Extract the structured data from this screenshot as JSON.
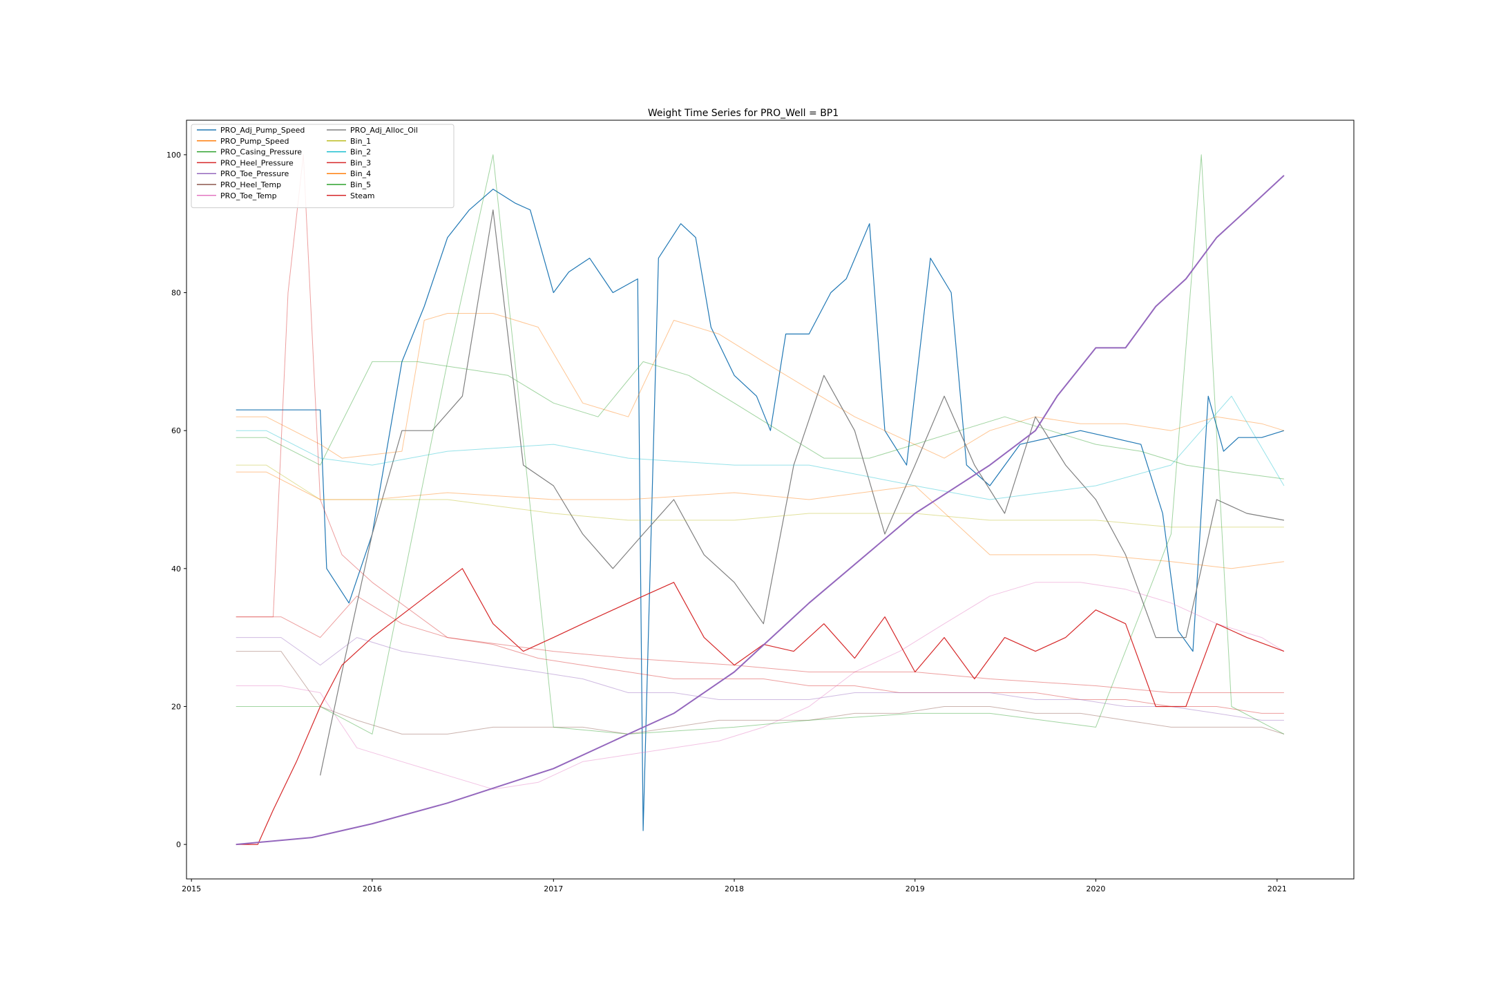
{
  "chart_data": {
    "type": "line",
    "title": "Weight Time Series for PRO_Well = BP1",
    "xlabel": "",
    "ylabel": "",
    "xlim": [
      "2014-12-22",
      "2021-06-05"
    ],
    "ylim": [
      -5,
      105
    ],
    "x_ticks": [
      "2015",
      "2016",
      "2017",
      "2018",
      "2019",
      "2020",
      "2021"
    ],
    "y_ticks": [
      0,
      20,
      40,
      60,
      80,
      100
    ],
    "grid": false,
    "legend_position": "upper left",
    "legend_columns": 2,
    "series": [
      {
        "name": "PRO_Adj_Pump_Speed",
        "color": "#1f77b4",
        "x": [
          "2015-04-01",
          "2015-09-18",
          "2015-10-01",
          "2015-11-15",
          "2016-01-01",
          "2016-03-01",
          "2016-04-15",
          "2016-06-01",
          "2016-07-15",
          "2016-09-01",
          "2016-10-15",
          "2016-11-15",
          "2017-01-01",
          "2017-02-01",
          "2017-03-15",
          "2017-05-01",
          "2017-06-20",
          "2017-07-01",
          "2017-08-01",
          "2017-09-15",
          "2017-10-15",
          "2017-11-15",
          "2018-01-01",
          "2018-02-15",
          "2018-03-15",
          "2018-04-15",
          "2018-06-01",
          "2018-07-15",
          "2018-08-15",
          "2018-10-01",
          "2018-11-01",
          "2018-12-15",
          "2019-02-01",
          "2019-03-15",
          "2019-04-15",
          "2019-06-01",
          "2019-08-01",
          "2019-10-01",
          "2019-12-01",
          "2020-02-01",
          "2020-04-01",
          "2020-05-15",
          "2020-06-15",
          "2020-07-15",
          "2020-08-15",
          "2020-09-15",
          "2020-10-15",
          "2020-12-01",
          "2021-01-15"
        ],
        "y": [
          63,
          63,
          40,
          35,
          45,
          70,
          78,
          88,
          92,
          95,
          93,
          92,
          80,
          83,
          85,
          80,
          82,
          2,
          85,
          90,
          88,
          75,
          68,
          65,
          60,
          74,
          74,
          80,
          82,
          90,
          60,
          55,
          85,
          80,
          55,
          52,
          58,
          59,
          60,
          59,
          58,
          48,
          31,
          28,
          65,
          57,
          59,
          59,
          60
        ]
      },
      {
        "name": "PRO_Pump_Speed",
        "color": "#ff7f0e",
        "x": [
          "2015-04-01",
          "2015-06-01",
          "2015-09-18",
          "2015-11-01",
          "2016-03-01",
          "2016-04-15",
          "2016-06-01",
          "2016-09-01",
          "2016-12-01",
          "2017-03-01",
          "2017-06-01",
          "2017-09-01",
          "2017-12-01",
          "2018-03-01",
          "2018-06-01",
          "2018-09-01",
          "2018-12-01",
          "2019-03-01",
          "2019-06-01",
          "2019-09-01",
          "2019-12-01",
          "2020-03-01",
          "2020-06-01",
          "2020-09-01",
          "2020-12-01",
          "2021-01-15"
        ],
        "y": [
          62,
          62,
          58,
          56,
          57,
          76,
          77,
          77,
          75,
          64,
          62,
          76,
          74,
          70,
          66,
          62,
          59,
          56,
          60,
          62,
          61,
          61,
          60,
          62,
          61,
          60
        ]
      },
      {
        "name": "PRO_Casing_Pressure",
        "color": "#2ca02c",
        "x": [
          "2015-04-01",
          "2015-06-01",
          "2015-09-18",
          "2016-01-01",
          "2016-04-01",
          "2016-07-01",
          "2016-10-01",
          "2017-01-01",
          "2017-04-01",
          "2017-07-01",
          "2017-10-01",
          "2018-01-01",
          "2018-04-01",
          "2018-07-01",
          "2018-10-01",
          "2019-01-01",
          "2019-04-01",
          "2019-07-01",
          "2019-10-01",
          "2020-01-01",
          "2020-04-01",
          "2020-07-01",
          "2020-10-01",
          "2021-01-15"
        ],
        "y": [
          59,
          59,
          55,
          70,
          70,
          69,
          68,
          64,
          62,
          70,
          68,
          64,
          60,
          56,
          56,
          58,
          60,
          62,
          60,
          58,
          57,
          55,
          54,
          53
        ]
      },
      {
        "name": "PRO_Heel_Pressure",
        "color": "#d62728",
        "x": [
          "2015-04-01",
          "2015-07-01",
          "2015-09-18",
          "2015-12-01",
          "2016-03-01",
          "2016-06-01",
          "2016-09-01",
          "2016-12-01",
          "2017-03-01",
          "2017-06-01",
          "2017-09-01",
          "2017-12-01",
          "2018-03-01",
          "2018-06-01",
          "2018-09-01",
          "2018-12-01",
          "2019-03-01",
          "2019-06-01",
          "2019-09-01",
          "2019-12-01",
          "2020-03-01",
          "2020-06-01",
          "2020-09-01",
          "2020-12-01",
          "2021-01-15"
        ],
        "y": [
          33,
          33,
          30,
          36,
          32,
          30,
          29,
          27,
          26,
          25,
          24,
          24,
          24,
          23,
          23,
          22,
          22,
          22,
          22,
          21,
          21,
          20,
          20,
          19,
          19
        ]
      },
      {
        "name": "PRO_Toe_Pressure",
        "color": "#9467bd",
        "x": [
          "2015-04-01",
          "2015-07-01",
          "2015-09-18",
          "2015-12-01",
          "2016-03-01",
          "2016-06-01",
          "2016-09-01",
          "2016-12-01",
          "2017-03-01",
          "2017-06-01",
          "2017-09-01",
          "2017-12-01",
          "2018-03-01",
          "2018-06-01",
          "2018-09-01",
          "2018-12-01",
          "2019-03-01",
          "2019-06-01",
          "2019-09-01",
          "2019-12-01",
          "2020-03-01",
          "2020-06-01",
          "2020-09-01",
          "2020-12-01",
          "2021-01-15"
        ],
        "y": [
          30,
          30,
          26,
          30,
          28,
          27,
          26,
          25,
          24,
          22,
          22,
          21,
          21,
          21,
          22,
          22,
          22,
          22,
          21,
          21,
          20,
          20,
          19,
          18,
          18
        ]
      },
      {
        "name": "PRO_Heel_Temp",
        "color": "#8c564b",
        "x": [
          "2015-04-01",
          "2015-07-01",
          "2015-09-18",
          "2015-12-01",
          "2016-03-01",
          "2016-06-01",
          "2016-09-01",
          "2016-12-01",
          "2017-03-01",
          "2017-06-01",
          "2017-09-01",
          "2017-12-01",
          "2018-03-01",
          "2018-06-01",
          "2018-09-01",
          "2018-12-01",
          "2019-03-01",
          "2019-06-01",
          "2019-09-01",
          "2019-12-01",
          "2020-03-01",
          "2020-06-01",
          "2020-09-01",
          "2020-12-01",
          "2021-01-15"
        ],
        "y": [
          28,
          28,
          20,
          18,
          16,
          16,
          17,
          17,
          17,
          16,
          17,
          18,
          18,
          18,
          19,
          19,
          20,
          20,
          19,
          19,
          18,
          17,
          17,
          17,
          16
        ]
      },
      {
        "name": "PRO_Toe_Temp",
        "color": "#e377c2",
        "x": [
          "2015-04-01",
          "2015-07-01",
          "2015-09-18",
          "2015-12-01",
          "2016-03-01",
          "2016-06-01",
          "2016-09-01",
          "2016-12-01",
          "2017-03-01",
          "2017-06-01",
          "2017-09-01",
          "2017-12-01",
          "2018-03-01",
          "2018-06-01",
          "2018-09-01",
          "2018-12-01",
          "2019-03-01",
          "2019-06-01",
          "2019-09-01",
          "2019-12-01",
          "2020-03-01",
          "2020-06-01",
          "2020-09-01",
          "2020-12-01",
          "2021-01-15"
        ],
        "y": [
          23,
          23,
          22,
          14,
          12,
          10,
          8,
          9,
          12,
          13,
          14,
          15,
          17,
          20,
          25,
          28,
          32,
          36,
          38,
          38,
          37,
          35,
          32,
          30,
          28
        ]
      },
      {
        "name": "PRO_Adj_Alloc_Oil",
        "color": "#7f7f7f",
        "x": [
          "2015-09-18",
          "2015-11-01",
          "2016-01-01",
          "2016-03-01",
          "2016-05-01",
          "2016-07-01",
          "2016-09-01",
          "2016-11-01",
          "2017-01-01",
          "2017-03-01",
          "2017-05-01",
          "2017-07-01",
          "2017-09-01",
          "2017-11-01",
          "2018-01-01",
          "2018-03-01",
          "2018-05-01",
          "2018-07-01",
          "2018-09-01",
          "2018-11-01",
          "2019-01-01",
          "2019-03-01",
          "2019-05-01",
          "2019-07-01",
          "2019-09-01",
          "2019-11-01",
          "2020-01-01",
          "2020-03-01",
          "2020-05-01",
          "2020-07-01",
          "2020-09-01",
          "2020-11-01",
          "2021-01-15"
        ],
        "y": [
          10,
          25,
          45,
          60,
          60,
          65,
          92,
          55,
          52,
          45,
          40,
          45,
          50,
          42,
          38,
          32,
          55,
          68,
          60,
          45,
          55,
          65,
          55,
          48,
          62,
          55,
          50,
          42,
          30,
          30,
          50,
          48,
          47
        ]
      },
      {
        "name": "Bin_1",
        "color": "#bcbd22",
        "x": [
          "2015-04-01",
          "2015-06-01",
          "2015-09-18",
          "2016-01-01",
          "2016-06-01",
          "2017-01-01",
          "2017-06-01",
          "2018-01-01",
          "2018-06-01",
          "2019-01-01",
          "2019-06-01",
          "2020-01-01",
          "2020-06-01",
          "2021-01-15"
        ],
        "y": [
          55,
          55,
          50,
          50,
          50,
          48,
          47,
          47,
          48,
          48,
          47,
          47,
          46,
          46
        ]
      },
      {
        "name": "Bin_2",
        "color": "#17becf",
        "x": [
          "2015-04-01",
          "2015-06-01",
          "2015-09-18",
          "2016-01-01",
          "2016-06-01",
          "2017-01-01",
          "2017-06-01",
          "2018-01-01",
          "2018-06-01",
          "2019-01-01",
          "2019-06-01",
          "2020-01-01",
          "2020-06-01",
          "2020-10-01",
          "2021-01-15"
        ],
        "y": [
          60,
          60,
          56,
          55,
          57,
          58,
          56,
          55,
          55,
          52,
          50,
          52,
          55,
          65,
          52
        ]
      },
      {
        "name": "Bin_3",
        "color": "#d62728",
        "x": [
          "2015-04-01",
          "2015-06-15",
          "2015-07-15",
          "2015-08-15",
          "2015-09-18",
          "2015-11-01",
          "2016-01-01",
          "2016-06-01",
          "2017-01-01",
          "2017-06-01",
          "2018-01-01",
          "2018-06-01",
          "2019-01-01",
          "2019-06-01",
          "2020-01-01",
          "2020-06-01",
          "2021-01-15"
        ],
        "y": [
          33,
          33,
          80,
          100,
          50,
          42,
          38,
          30,
          28,
          27,
          26,
          25,
          25,
          24,
          23,
          22,
          22
        ]
      },
      {
        "name": "Bin_4",
        "color": "#ff7f0e",
        "x": [
          "2015-04-01",
          "2015-06-01",
          "2015-09-18",
          "2016-01-01",
          "2016-06-01",
          "2017-01-01",
          "2017-06-01",
          "2018-01-01",
          "2018-06-01",
          "2019-01-01",
          "2019-06-01",
          "2020-01-01",
          "2020-06-01",
          "2020-10-01",
          "2021-01-15"
        ],
        "y": [
          54,
          54,
          50,
          50,
          51,
          50,
          50,
          51,
          50,
          52,
          42,
          42,
          41,
          40,
          41
        ]
      },
      {
        "name": "Bin_5",
        "color": "#2ca02c",
        "x": [
          "2015-04-01",
          "2015-09-18",
          "2016-01-01",
          "2016-06-01",
          "2016-09-01",
          "2017-01-01",
          "2017-06-01",
          "2018-01-01",
          "2018-06-01",
          "2019-01-01",
          "2019-06-01",
          "2020-01-01",
          "2020-06-01",
          "2020-08-01",
          "2020-10-01",
          "2021-01-15"
        ],
        "y": [
          20,
          20,
          16,
          70,
          100,
          17,
          16,
          17,
          18,
          19,
          19,
          17,
          45,
          100,
          20,
          16
        ]
      },
      {
        "name": "Steam",
        "color": "#d62728",
        "x": [
          "2015-04-01",
          "2015-05-15",
          "2015-06-15",
          "2015-08-01",
          "2015-09-18",
          "2015-11-01",
          "2016-01-01",
          "2016-04-01",
          "2016-07-01",
          "2016-09-01",
          "2016-11-01",
          "2017-01-01",
          "2017-03-01",
          "2017-05-01",
          "2017-07-01",
          "2017-09-01",
          "2017-11-01",
          "2018-01-01",
          "2018-03-01",
          "2018-05-01",
          "2018-07-01",
          "2018-09-01",
          "2018-11-01",
          "2019-01-01",
          "2019-03-01",
          "2019-05-01",
          "2019-07-01",
          "2019-09-01",
          "2019-11-01",
          "2020-01-01",
          "2020-03-01",
          "2020-05-01",
          "2020-07-01",
          "2020-09-01",
          "2020-11-01",
          "2021-01-15"
        ],
        "y": [
          0,
          0,
          5,
          12,
          20,
          26,
          30,
          35,
          40,
          32,
          28,
          30,
          32,
          34,
          36,
          38,
          30,
          26,
          29,
          28,
          32,
          27,
          33,
          25,
          30,
          24,
          30,
          28,
          30,
          34,
          32,
          20,
          20,
          32,
          30,
          28
        ]
      },
      {
        "name": "",
        "color": "#9467bd",
        "x": [
          "2015-04-01",
          "2015-09-01",
          "2016-01-01",
          "2016-06-01",
          "2017-01-01",
          "2017-06-01",
          "2017-09-01",
          "2018-01-01",
          "2018-06-01",
          "2019-01-01",
          "2019-06-01",
          "2019-09-01",
          "2019-10-15",
          "2020-01-01",
          "2020-03-01",
          "2020-05-01",
          "2020-07-01",
          "2020-09-01",
          "2020-11-01",
          "2021-01-15"
        ],
        "y": [
          0,
          1,
          3,
          6,
          11,
          16,
          19,
          25,
          35,
          48,
          55,
          60,
          65,
          72,
          72,
          78,
          82,
          88,
          92,
          97
        ]
      }
    ]
  }
}
